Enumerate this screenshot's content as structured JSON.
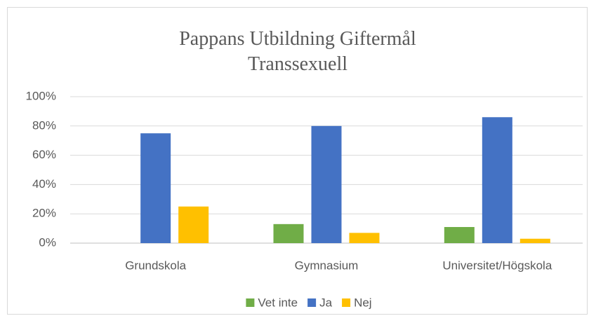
{
  "chart_data": {
    "type": "bar",
    "title": "Pappans Utbildning Giftermål Transsexuell",
    "categories": [
      "Grundskola",
      "Gymnasium",
      "Universitet/Högskola"
    ],
    "series": [
      {
        "name": "Vet inte",
        "color": "#70ad47",
        "values": [
          0,
          13,
          11
        ]
      },
      {
        "name": "Ja",
        "color": "#4472c4",
        "values": [
          75,
          80,
          86
        ]
      },
      {
        "name": "Nej",
        "color": "#ffc000",
        "values": [
          25,
          7,
          3
        ]
      }
    ],
    "ylim": [
      0,
      100
    ],
    "yticks": [
      {
        "value": 0,
        "label": "0%"
      },
      {
        "value": 20,
        "label": "20%"
      },
      {
        "value": 40,
        "label": "40%"
      },
      {
        "value": 60,
        "label": "60%"
      },
      {
        "value": 80,
        "label": "80%"
      },
      {
        "value": 100,
        "label": "100%"
      }
    ],
    "grid": true,
    "legend": "bottom"
  }
}
